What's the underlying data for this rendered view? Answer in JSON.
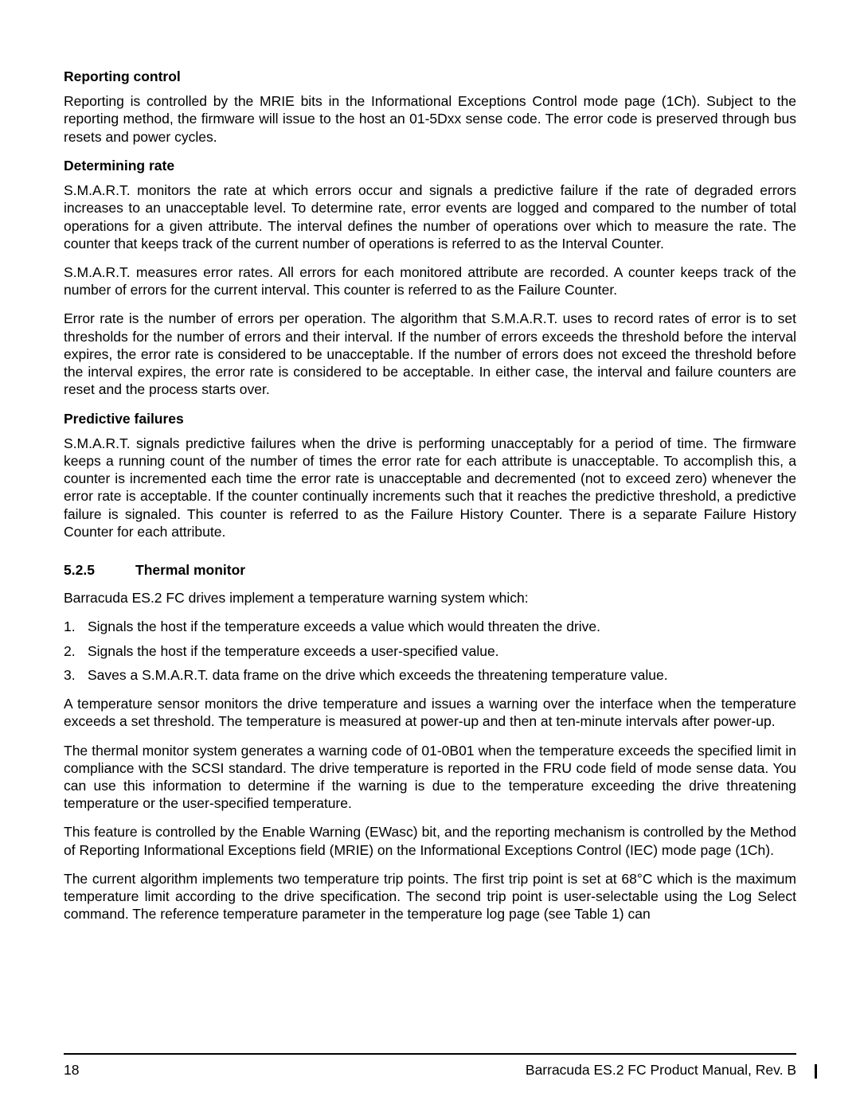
{
  "subheads": {
    "reporting": "Reporting control",
    "rate": "Determining rate",
    "predictive": "Predictive failures"
  },
  "paragraphs": {
    "reporting_p1": "Reporting is controlled by the MRIE bits in the Informational Exceptions Control mode page (1Ch). Subject to the reporting method, the firmware will issue to the host an 01-5Dxx sense code. The error code is preserved through bus resets and power cycles.",
    "rate_p1": "S.M.A.R.T. monitors the rate at which errors occur and signals a predictive failure if the rate of degraded errors increases to an unacceptable level. To determine rate, error events are logged and compared to the number of total operations for a given attribute. The interval defines the number of operations over which to measure the rate. The counter that keeps track of the current number of operations is referred to as the Interval Counter.",
    "rate_p2": "S.M.A.R.T. measures error rates. All errors for each monitored attribute are recorded. A counter keeps track of the number of errors for the current interval. This counter is referred to as the Failure Counter.",
    "rate_p3": "Error rate is the number of errors per operation. The algorithm that S.M.A.R.T. uses to record rates of error is to set thresholds for the number of errors and their interval. If the number of errors exceeds the threshold before the interval expires, the error rate is considered to be unacceptable. If the number of errors does not exceed the threshold before the interval expires, the error rate is considered to be acceptable. In either case, the interval and failure counters are reset and the process starts over.",
    "predictive_p1": "S.M.A.R.T. signals predictive failures when the drive is performing unacceptably for a period of time. The firmware keeps a running count of the number of times the error rate for each attribute is unacceptable. To accomplish this, a counter is incremented each time the error rate is unacceptable and decremented (not to exceed zero) whenever the error rate is acceptable. If the counter continually increments such that it reaches the predictive threshold, a predictive failure is signaled. This counter is referred to as the Failure History Counter. There is a separate Failure History Counter for each attribute.",
    "thermal_intro": "Barracuda ES.2 FC drives implement a temperature warning system which:",
    "thermal_p1": "A temperature sensor monitors the drive temperature and issues a warning over the interface when the temperature exceeds a set threshold. The temperature is measured at power-up and then at ten-minute intervals after power-up.",
    "thermal_p2": "The thermal monitor system generates a warning code of 01-0B01 when the temperature exceeds the specified limit in compliance with the SCSI standard. The drive temperature is reported in the FRU code field of mode sense data. You can use this information to determine if the warning is due to the temperature exceeding the drive threatening temperature or the user-specified temperature.",
    "thermal_p3": "This feature is controlled by the Enable Warning (EWasc) bit, and the reporting mechanism is controlled by the Method of Reporting Informational Exceptions field (MRIE) on the Informational Exceptions Control (IEC) mode page (1Ch).",
    "thermal_p4": "The current algorithm implements two temperature trip points. The first trip point is set at 68°C which is the maximum temperature limit according to the drive specification. The second trip point is user-selectable using the Log Select command. The reference temperature parameter in the temperature log page (see Table 1) can"
  },
  "section": {
    "number": "5.2.5",
    "title": "Thermal monitor"
  },
  "list": {
    "item1": "Signals the host if the temperature exceeds a value which would threaten the drive.",
    "item2": "Signals the host if the temperature exceeds a user-specified value.",
    "item3": "Saves a S.M.A.R.T. data frame on the drive which exceeds the threatening temperature value.",
    "n1": "1.",
    "n2": "2.",
    "n3": "3."
  },
  "footer": {
    "page_number": "18",
    "doc_title": "Barracuda ES.2 FC Product Manual, Rev. B"
  }
}
